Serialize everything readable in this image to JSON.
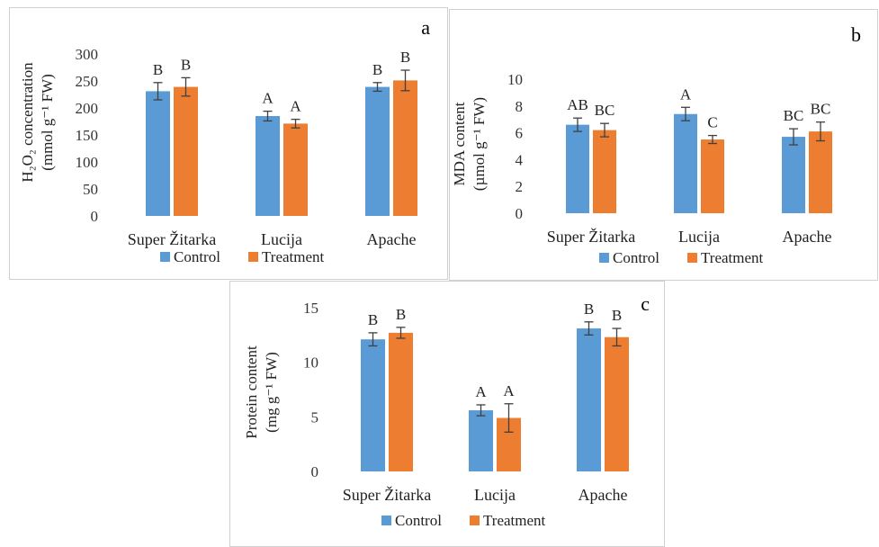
{
  "colors": {
    "control": "#5b9bd5",
    "treatment": "#ed7d31",
    "error_bar": "#404040"
  },
  "chart_data": [
    {
      "type": "bar",
      "panel_label": "a",
      "categories": [
        "Super Žitarka",
        "Lucija",
        "Apache"
      ],
      "series": [
        {
          "name": "Control",
          "values": [
            231,
            185,
            239
          ],
          "errors": [
            16,
            9,
            8
          ],
          "letters": [
            "B",
            "A",
            "B"
          ]
        },
        {
          "name": "Treatment",
          "values": [
            239,
            171,
            251
          ],
          "errors": [
            17,
            8,
            19
          ],
          "letters": [
            "B",
            "A",
            "B"
          ]
        }
      ],
      "ylabel_line1": "H₂O₂ concentration",
      "ylabel_line2": "(mmol g⁻¹ FW)",
      "ylim": [
        0,
        300
      ],
      "yticks": [
        0,
        50,
        100,
        150,
        200,
        250,
        300
      ],
      "legend_position": "bottom",
      "grid": false
    },
    {
      "type": "bar",
      "panel_label": "b",
      "categories": [
        "Super Žitarka",
        "Lucija",
        "Apache"
      ],
      "series": [
        {
          "name": "Control",
          "values": [
            6.6,
            7.4,
            5.7
          ],
          "errors": [
            0.5,
            0.5,
            0.6
          ],
          "letters": [
            "AB",
            "A",
            "BC"
          ]
        },
        {
          "name": "Treatment",
          "values": [
            6.2,
            5.5,
            6.1
          ],
          "errors": [
            0.5,
            0.3,
            0.7
          ],
          "letters": [
            "BC",
            "C",
            "BC"
          ]
        }
      ],
      "ylabel_line1": "MDA content",
      "ylabel_line2": "(µmol g⁻¹ FW)",
      "ylim": [
        0,
        10
      ],
      "yticks": [
        0,
        2,
        4,
        6,
        8,
        10
      ],
      "legend_position": "bottom",
      "grid": false
    },
    {
      "type": "bar",
      "panel_label": "c",
      "categories": [
        "Super Žitarka",
        "Lucija",
        "Apache"
      ],
      "series": [
        {
          "name": "Control",
          "values": [
            12.1,
            5.6,
            13.1
          ],
          "errors": [
            0.6,
            0.5,
            0.6
          ],
          "letters": [
            "B",
            "A",
            "B"
          ]
        },
        {
          "name": "Treatment",
          "values": [
            12.7,
            4.9,
            12.3
          ],
          "errors": [
            0.5,
            1.3,
            0.8
          ],
          "letters": [
            "B",
            "A",
            "B"
          ]
        }
      ],
      "ylabel_line1": "Protein content",
      "ylabel_line2": "(mg g⁻¹ FW)",
      "ylim": [
        0,
        15
      ],
      "yticks": [
        0,
        5,
        10,
        15
      ],
      "legend_position": "bottom",
      "grid": false
    }
  ]
}
